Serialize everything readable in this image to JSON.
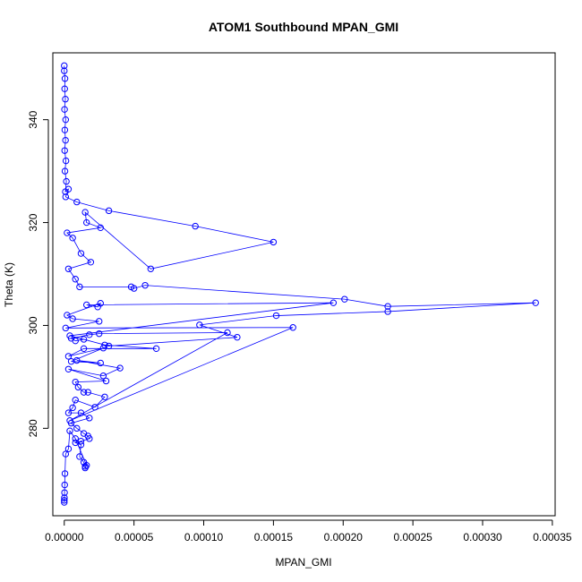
{
  "chart_data": {
    "type": "line",
    "title": "ATOM1 Southbound MPAN_GMI",
    "xlabel": "MPAN_GMI",
    "ylabel": "Theta (K)",
    "xlim": [
      -8.2e-06,
      0.000352
    ],
    "ylim": [
      263.0,
      353.0
    ],
    "x_ticks": [
      0,
      5e-05,
      0.0001,
      0.00015,
      0.0002,
      0.00025,
      0.0003,
      0.00035
    ],
    "x_tick_labels": [
      "0.00000",
      "0.00005",
      "0.00010",
      "0.00015",
      "0.00020",
      "0.00025",
      "0.00030",
      "0.00035"
    ],
    "y_ticks": [
      280,
      300,
      320,
      340
    ],
    "y_tick_labels": [
      "280",
      "300",
      "320",
      "340"
    ],
    "grid": false,
    "legend": "none",
    "marker": "open-circle",
    "color": "#0000ff",
    "series": [
      {
        "name": "MPAN_GMI",
        "points": [
          [
            0.0,
            350.5
          ],
          [
            0.0,
            349.5
          ],
          [
            5e-07,
            348.0
          ],
          [
            3e-07,
            346.0
          ],
          [
            8e-07,
            344.0
          ],
          [
            2e-07,
            342.0
          ],
          [
            1e-06,
            340.0
          ],
          [
            4e-07,
            338.0
          ],
          [
            9e-07,
            336.0
          ],
          [
            3e-07,
            334.0
          ],
          [
            1.2e-06,
            332.0
          ],
          [
            5e-07,
            330.0
          ],
          [
            1.5e-06,
            328.0
          ],
          [
            8e-07,
            326.0
          ],
          [
            3e-06,
            326.5
          ],
          [
            1e-06,
            325.0
          ],
          [
            9e-06,
            324.0
          ],
          [
            3.2e-05,
            322.3
          ],
          [
            9.4e-05,
            319.3
          ],
          [
            0.00015,
            316.2
          ],
          [
            6.2e-05,
            311.0
          ],
          [
            1.5e-05,
            322.0
          ],
          [
            1.6e-05,
            320.0
          ],
          [
            2.6e-05,
            319.0
          ],
          [
            2e-06,
            318.0
          ],
          [
            6e-06,
            317.0
          ],
          [
            1.2e-05,
            314.0
          ],
          [
            1.9e-05,
            312.3
          ],
          [
            3e-06,
            311.0
          ],
          [
            8e-06,
            309.0
          ],
          [
            1.1e-05,
            307.5
          ],
          [
            4.8e-05,
            307.5
          ],
          [
            5e-05,
            307.2
          ],
          [
            5.8e-05,
            307.8
          ],
          [
            0.000201,
            305.1
          ],
          [
            0.000232,
            303.7
          ],
          [
            0.000338,
            304.4
          ],
          [
            0.000232,
            302.7
          ],
          [
            0.000152,
            301.9
          ],
          [
            9.7e-05,
            300.1
          ],
          [
            0.000124,
            297.7
          ],
          [
            3.2e-05,
            296.0
          ],
          [
            4e-06,
            298.0
          ],
          [
            0.000193,
            304.4
          ],
          [
            1.6e-05,
            304.0
          ],
          [
            2.4e-05,
            303.6
          ],
          [
            2.6e-05,
            304.3
          ],
          [
            2e-06,
            302.0
          ],
          [
            6e-06,
            301.3
          ],
          [
            2.5e-05,
            300.8
          ],
          [
            1e-06,
            299.5
          ],
          [
            0.000164,
            299.6
          ],
          [
            4e-06,
            281.5
          ],
          [
            0.000117,
            298.6
          ],
          [
            2.5e-05,
            298.4
          ],
          [
            1.8e-05,
            298.2
          ],
          [
            5e-06,
            297.5
          ],
          [
            8e-06,
            297.0
          ],
          [
            1.4e-05,
            297.3
          ],
          [
            2.9e-05,
            296.2
          ],
          [
            6.6e-05,
            295.5
          ],
          [
            1.4e-05,
            295.5
          ],
          [
            3e-06,
            294.0
          ],
          [
            2.8e-05,
            295.6
          ],
          [
            5e-06,
            293.0
          ],
          [
            2.6e-05,
            292.7
          ],
          [
            9e-06,
            293.2
          ],
          [
            4e-05,
            291.7
          ],
          [
            2.8e-05,
            290.2
          ],
          [
            3e-06,
            291.5
          ],
          [
            3e-05,
            289.2
          ],
          [
            8e-06,
            289.0
          ],
          [
            1e-05,
            288.0
          ],
          [
            1.4e-05,
            287.0
          ],
          [
            1.7e-05,
            287.0
          ],
          [
            2.9e-05,
            286.1
          ],
          [
            2.2e-05,
            284.1
          ],
          [
            8e-06,
            285.5
          ],
          [
            6e-06,
            284.0
          ],
          [
            3e-06,
            283.0
          ],
          [
            1.2e-05,
            283.0
          ],
          [
            1.8e-05,
            282.0
          ],
          [
            5e-06,
            281.0
          ],
          [
            9e-06,
            280.0
          ],
          [
            1.4e-05,
            279.0
          ],
          [
            1.7e-05,
            278.5
          ],
          [
            1.8e-05,
            278.0
          ],
          [
            1.2e-05,
            277.5
          ],
          [
            8e-06,
            277.2
          ],
          [
            1.2e-05,
            276.8
          ],
          [
            1.1e-05,
            274.5
          ],
          [
            1.4e-05,
            273.4
          ],
          [
            1.5e-05,
            272.6
          ],
          [
            1.5e-05,
            272.3
          ],
          [
            1.6e-05,
            272.8
          ],
          [
            8e-06,
            278.0
          ],
          [
            4e-06,
            279.5
          ],
          [
            3e-06,
            276.0
          ],
          [
            1e-06,
            275.0
          ],
          [
            5e-07,
            271.2
          ],
          [
            3e-07,
            269.0
          ],
          [
            2e-07,
            267.5
          ],
          [
            1e-07,
            266.5
          ],
          [
            0.0,
            266.0
          ],
          [
            0.0,
            265.6
          ]
        ]
      }
    ]
  }
}
